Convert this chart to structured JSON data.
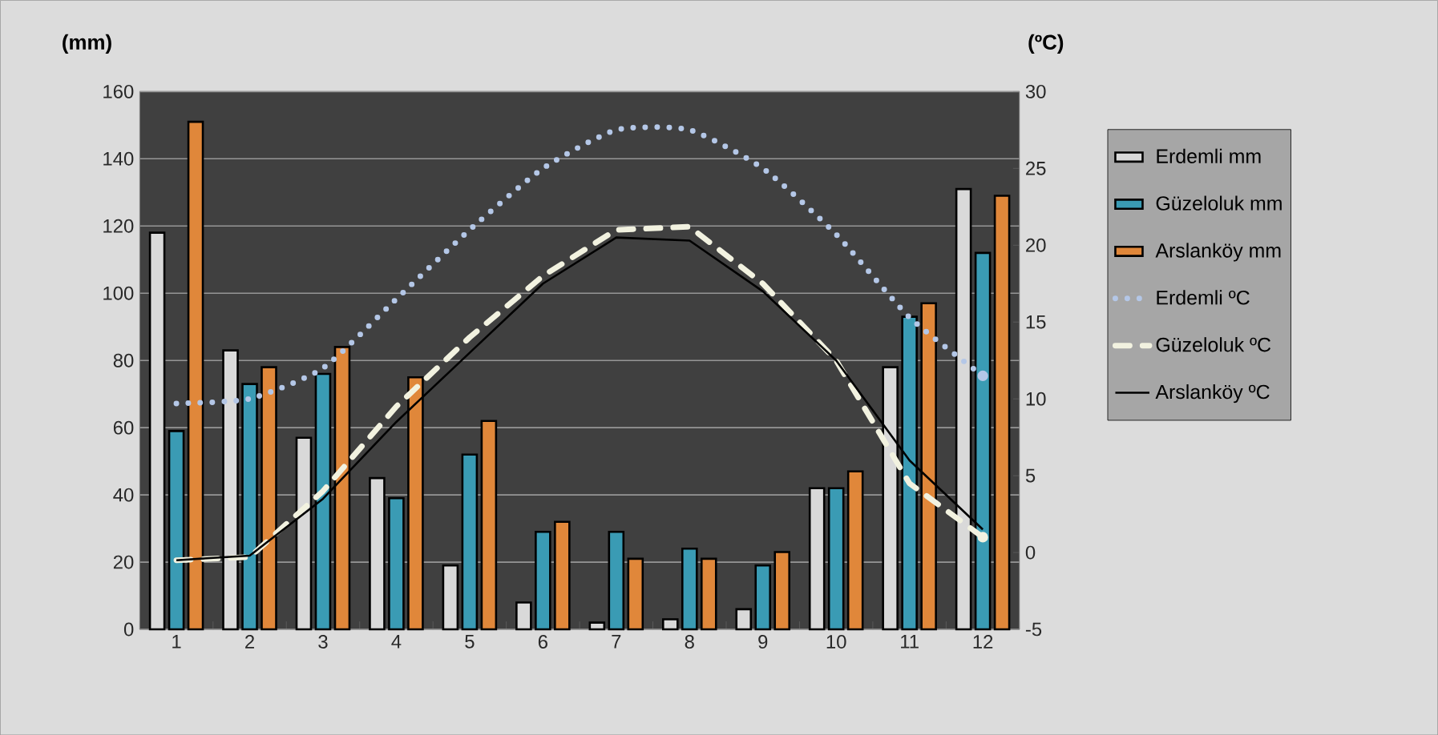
{
  "chart_data": {
    "type": "bar",
    "ylabel": "(mm)",
    "y2label": "(ºC)",
    "categories": [
      "1",
      "2",
      "3",
      "4",
      "5",
      "6",
      "7",
      "8",
      "9",
      "10",
      "11",
      "12"
    ],
    "ylim": [
      0,
      160
    ],
    "yticks": [
      0,
      20,
      40,
      60,
      80,
      100,
      120,
      140,
      160
    ],
    "y2lim": [
      -5,
      30
    ],
    "y2ticks": [
      -5,
      0,
      5,
      10,
      15,
      20,
      25,
      30
    ],
    "grid": "y",
    "legend": "right",
    "marker": "none",
    "series": [
      {
        "name": "Erdemli mm",
        "color": "#d9d9d9",
        "values": [
          118,
          83,
          57,
          45,
          19,
          8,
          2,
          3,
          6,
          42,
          78,
          131
        ]
      },
      {
        "name": "Güzeloluk mm",
        "color": "#3a9bb4",
        "values": [
          59,
          73,
          76,
          39,
          52,
          29,
          29,
          24,
          19,
          42,
          93,
          112
        ]
      },
      {
        "name": "Arslanköy mm",
        "color": "#e0873a",
        "values": [
          151,
          78,
          84,
          75,
          62,
          32,
          21,
          21,
          23,
          47,
          97,
          129
        ]
      },
      {
        "name": "Erdemli ºC",
        "type": "line",
        "axis": "y2",
        "line_style": "dotted",
        "color": "#b4c7e7",
        "values": [
          9.7,
          10,
          12,
          16.5,
          21,
          25,
          27.5,
          27.5,
          25,
          20.7,
          15.3,
          11.5
        ]
      },
      {
        "name": "Güzeloluk ºC",
        "type": "line",
        "axis": "y2",
        "line_style": "dashed",
        "color": "#f2f2e0",
        "values": [
          -0.5,
          -0.3,
          4,
          9.5,
          14,
          18,
          21,
          21.2,
          17.5,
          12.5,
          4.5,
          1
        ]
      },
      {
        "name": "Arslanköy ºC",
        "type": "line",
        "axis": "y2",
        "line_style": "solid",
        "color": "#000000",
        "values": [
          -0.5,
          -0.2,
          3.5,
          8.5,
          13,
          17.5,
          20.5,
          20.3,
          17,
          12.5,
          6,
          1.5
        ]
      }
    ]
  }
}
